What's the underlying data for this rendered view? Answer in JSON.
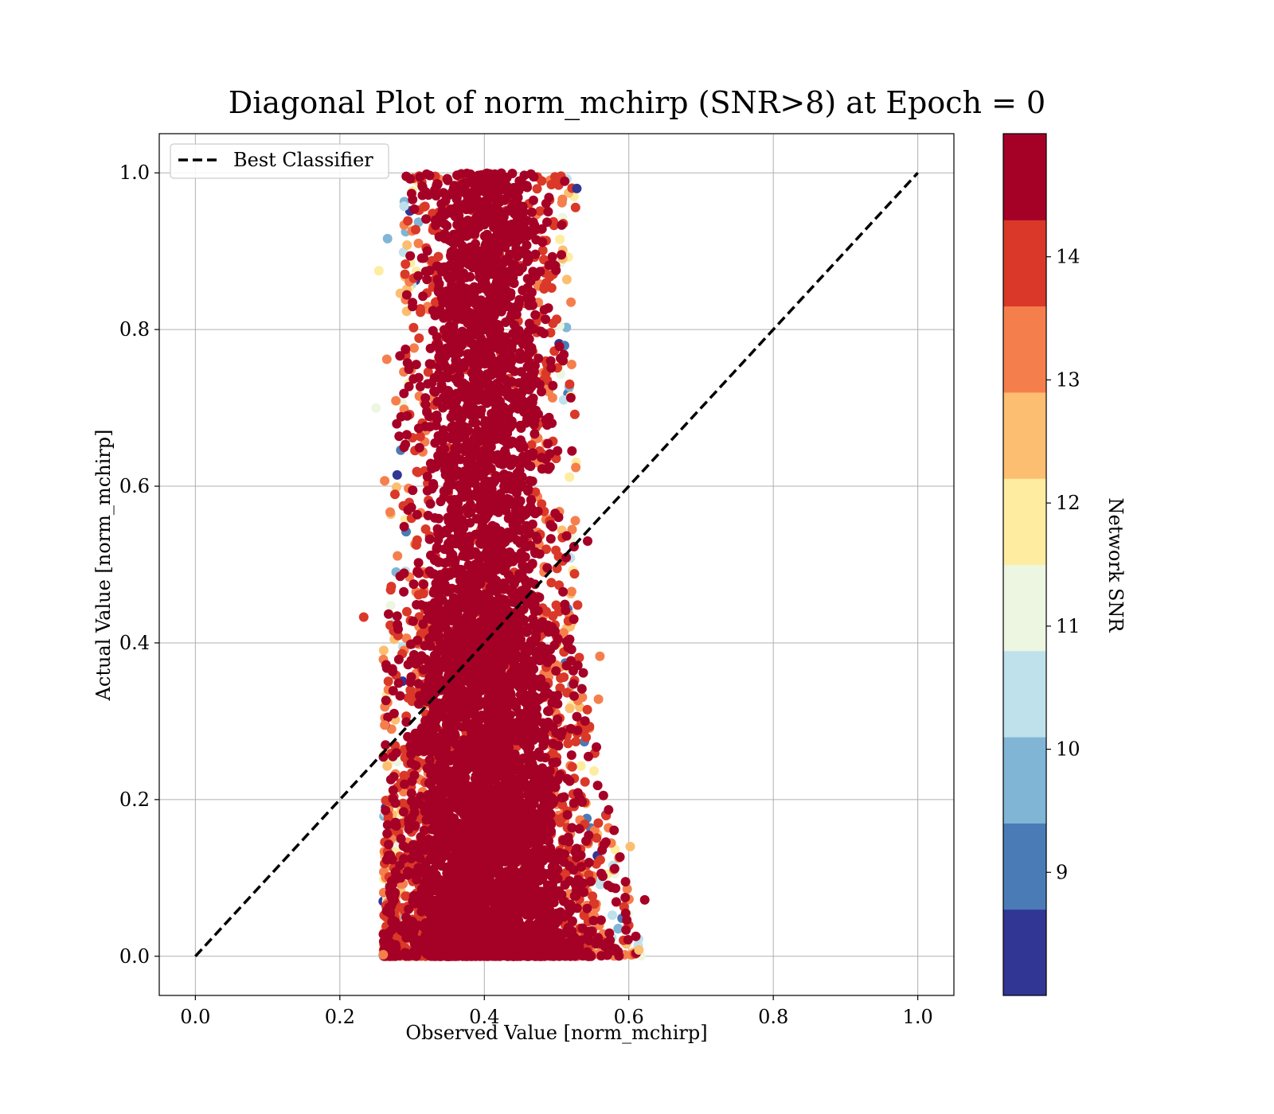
{
  "chart_data": {
    "type": "scatter",
    "title": "Diagonal Plot of norm_mchirp (SNR>8) at Epoch = 0",
    "xlabel": "Observed Value [norm_mchirp]",
    "ylabel": "Actual Value [norm_mchirp]",
    "xlim": [
      -0.05,
      1.05
    ],
    "ylim": [
      -0.05,
      1.05
    ],
    "x_ticks": [
      0.0,
      0.2,
      0.4,
      0.6,
      0.8,
      1.0
    ],
    "y_ticks": [
      0.0,
      0.2,
      0.4,
      0.6,
      0.8,
      1.0
    ],
    "x_tick_labels": [
      "0.0",
      "0.2",
      "0.4",
      "0.6",
      "0.8",
      "1.0"
    ],
    "y_tick_labels": [
      "0.0",
      "0.2",
      "0.4",
      "0.6",
      "0.8",
      "1.0"
    ],
    "grid": true,
    "legend": {
      "placement": "upper-left",
      "entries": [
        {
          "label": "Best Classifier",
          "style": "dashed",
          "color": "#000000"
        }
      ]
    },
    "series": [
      {
        "name": "Best Classifier",
        "kind": "line",
        "style": "dashed",
        "x": [
          0.0,
          1.0
        ],
        "y": [
          0.0,
          1.0
        ]
      }
    ],
    "scatter_region": {
      "description_points": [
        {
          "y": 1.0,
          "x_min": 0.29,
          "x_max": 0.53
        },
        {
          "y": 0.8,
          "x_min": 0.28,
          "x_max": 0.52
        },
        {
          "y": 0.6,
          "x_min": 0.27,
          "x_max": 0.53
        },
        {
          "y": 0.4,
          "x_min": 0.26,
          "x_max": 0.53
        },
        {
          "y": 0.2,
          "x_min": 0.26,
          "x_max": 0.57
        },
        {
          "y": 0.0,
          "x_min": 0.26,
          "x_max": 0.62
        }
      ],
      "dense_center_x": 0.4,
      "outlier_points": [
        {
          "x": 0.233,
          "y": 0.433,
          "snr": 14.0
        },
        {
          "x": 0.622,
          "y": 0.072,
          "snr": 14.5
        },
        {
          "x": 0.614,
          "y": 0.008,
          "snr": 12.5
        },
        {
          "x": 0.602,
          "y": 0.14,
          "snr": 12.5
        },
        {
          "x": 0.572,
          "y": 0.187,
          "snr": 14.5
        },
        {
          "x": 0.56,
          "y": 0.383,
          "snr": 13.5
        },
        {
          "x": 0.558,
          "y": 0.328,
          "snr": 13.5
        },
        {
          "x": 0.543,
          "y": 0.53,
          "snr": 14.5
        },
        {
          "x": 0.528,
          "y": 0.98,
          "snr": 8.5
        },
        {
          "x": 0.52,
          "y": 0.835,
          "snr": 13.5
        },
        {
          "x": 0.25,
          "y": 0.7,
          "snr": 11.0
        },
        {
          "x": 0.254,
          "y": 0.875,
          "snr": 12.0
        },
        {
          "x": 0.262,
          "y": 0.295,
          "snr": 13.5
        },
        {
          "x": 0.26,
          "y": 0.002,
          "snr": 13.5
        },
        {
          "x": 0.265,
          "y": 0.762,
          "snr": 13.5
        },
        {
          "x": 0.262,
          "y": 0.607,
          "snr": 13.5
        },
        {
          "x": 0.264,
          "y": 0.372,
          "snr": 14.5
        },
        {
          "x": 0.266,
          "y": 0.916,
          "snr": 9.5
        }
      ]
    },
    "colorbar": {
      "label": "Network SNR",
      "range": [
        8.0,
        15.0
      ],
      "ticks": [
        9,
        10,
        11,
        12,
        13,
        14
      ],
      "tick_labels": [
        "9",
        "10",
        "11",
        "12",
        "13",
        "14"
      ],
      "bins": [
        {
          "from": 8.0,
          "to": 8.7,
          "color": "#313695"
        },
        {
          "from": 8.7,
          "to": 9.4,
          "color": "#4a7bb7"
        },
        {
          "from": 9.4,
          "to": 10.1,
          "color": "#81b5d6"
        },
        {
          "from": 10.1,
          "to": 10.8,
          "color": "#bfe1ec"
        },
        {
          "from": 10.8,
          "to": 11.5,
          "color": "#ecf6e0"
        },
        {
          "from": 11.5,
          "to": 12.2,
          "color": "#feeca0"
        },
        {
          "from": 12.2,
          "to": 12.9,
          "color": "#fcbe70"
        },
        {
          "from": 12.9,
          "to": 13.6,
          "color": "#f57f4c"
        },
        {
          "from": 13.6,
          "to": 14.3,
          "color": "#da3828"
        },
        {
          "from": 14.3,
          "to": 15.0,
          "color": "#a50026"
        }
      ]
    }
  }
}
